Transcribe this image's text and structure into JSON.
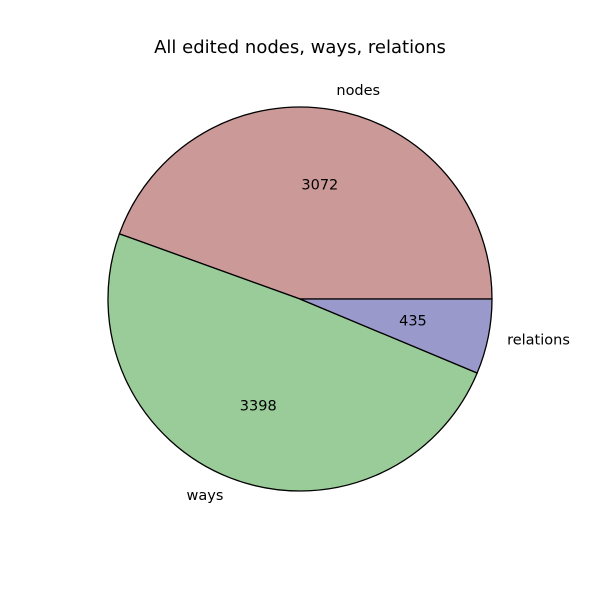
{
  "chart_data": {
    "type": "pie",
    "title": "All edited nodes, ways, relations",
    "start_angle_deg": 0,
    "direction": "counterclockwise",
    "edge_color": "#000000",
    "slices": [
      {
        "label": "nodes",
        "value": 3072,
        "value_label": "3072",
        "color": "#cc9999"
      },
      {
        "label": "ways",
        "value": 3398,
        "value_label": "3398",
        "color": "#99cc99"
      },
      {
        "label": "relations",
        "value": 435,
        "value_label": "435",
        "color": "#9999cc"
      }
    ]
  }
}
